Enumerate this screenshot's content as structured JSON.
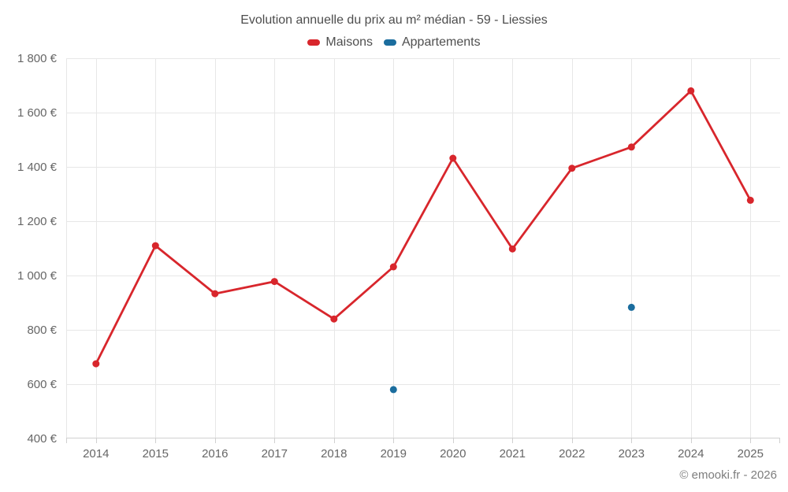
{
  "title": "Evolution annuelle du prix au m² médian - 59 - Liessies",
  "footer": "© emooki.fr - 2026",
  "legend": {
    "items": [
      {
        "label": "Maisons",
        "color": "#d8262c"
      },
      {
        "label": "Appartements",
        "color": "#1b6d9e"
      }
    ]
  },
  "chart_data": {
    "type": "line",
    "title": "Evolution annuelle du prix au m² médian - 59 - Liessies",
    "categories": [
      "2014",
      "2015",
      "2016",
      "2017",
      "2018",
      "2019",
      "2020",
      "2021",
      "2022",
      "2023",
      "2024",
      "2025"
    ],
    "series": [
      {
        "name": "Maisons",
        "type": "line",
        "color": "#d8262c",
        "values": [
          675,
          1110,
          933,
          978,
          840,
          1032,
          1432,
          1098,
          1395,
          1473,
          1680,
          1277
        ]
      },
      {
        "name": "Appartements",
        "type": "scatter",
        "color": "#1b6d9e",
        "values": [
          null,
          null,
          null,
          null,
          null,
          580,
          null,
          null,
          null,
          883,
          null,
          null
        ]
      }
    ],
    "ylim": [
      400,
      1800
    ],
    "yticks": [
      400,
      600,
      800,
      1000,
      1200,
      1400,
      1600,
      1800
    ],
    "ytick_labels": [
      "400 €",
      "600 €",
      "800 €",
      "1 000 €",
      "1 200 €",
      "1 400 €",
      "1 600 €",
      "1 800 €"
    ],
    "grid": true,
    "gridline_color": "#e7e7e7",
    "axis_line_color": "#d0d0d0",
    "legend_position": "top"
  }
}
